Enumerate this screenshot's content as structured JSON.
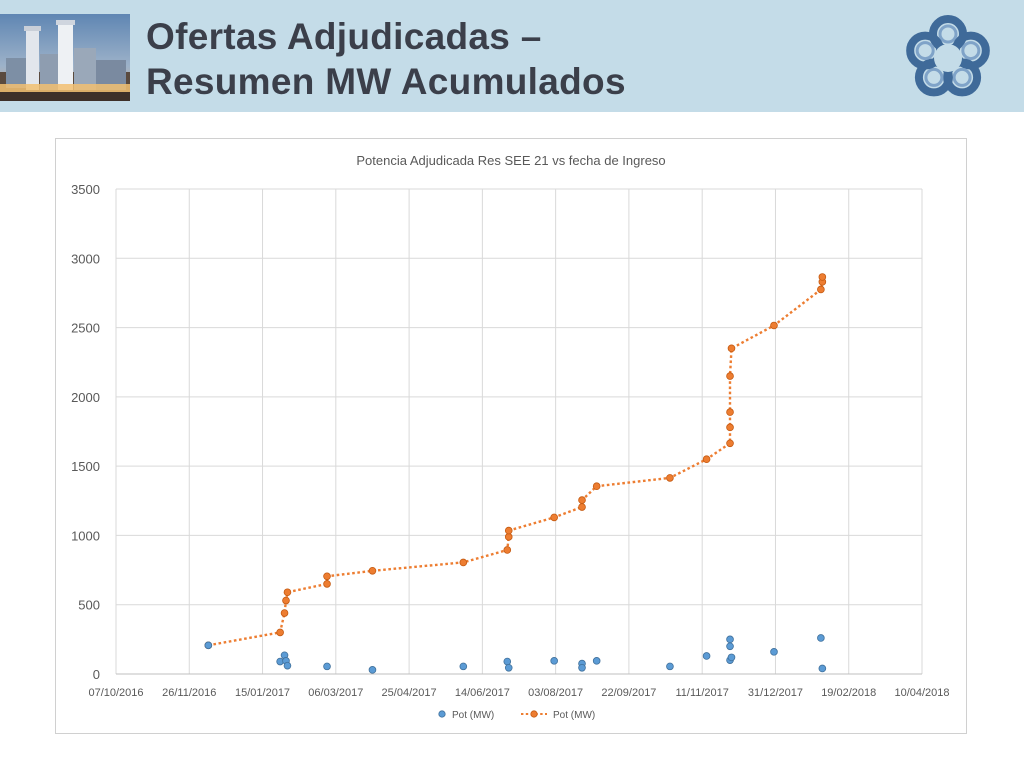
{
  "slide": {
    "title_line1": "Ofertas Adjudicadas –",
    "title_line2": "Resumen MW Acumulados"
  },
  "icons": {
    "header_photo": "power-plant-photo",
    "logo": "flower-logo-icon"
  },
  "colors": {
    "header_bg": "#c4dce8",
    "title_text": "#3b3f4a",
    "scatter_series": "#5b9bd5",
    "line_series": "#ed7d31",
    "logo": "#3f6a99"
  },
  "chart_data": {
    "type": "scatter",
    "title": "Potencia Adjudicada Res SEE 21 vs fecha de Ingreso",
    "xlabel": "",
    "ylabel": "",
    "xlim": [
      "2016-10-07",
      "2018-04-10"
    ],
    "ylim": [
      0,
      3500
    ],
    "x_ticks": [
      "07/10/2016",
      "26/11/2016",
      "15/01/2017",
      "06/03/2017",
      "25/04/2017",
      "14/06/2017",
      "03/08/2017",
      "22/09/2017",
      "11/11/2017",
      "31/12/2017",
      "19/02/2018",
      "10/04/2018"
    ],
    "y_ticks": [
      0,
      500,
      1000,
      1500,
      2000,
      2500,
      3000,
      3500
    ],
    "grid": true,
    "legend_position": "bottom",
    "series": [
      {
        "name": "Pot (MW)",
        "style": "markers",
        "points": [
          {
            "x": "2016-12-09",
            "y": 207
          },
          {
            "x": "2017-01-27",
            "y": 90
          },
          {
            "x": "2017-01-30",
            "y": 135
          },
          {
            "x": "2017-01-31",
            "y": 95
          },
          {
            "x": "2017-02-01",
            "y": 60
          },
          {
            "x": "2017-02-28",
            "y": 55
          },
          {
            "x": "2017-03-31",
            "y": 30
          },
          {
            "x": "2017-06-01",
            "y": 55
          },
          {
            "x": "2017-07-01",
            "y": 90
          },
          {
            "x": "2017-07-02",
            "y": 45
          },
          {
            "x": "2017-08-02",
            "y": 95
          },
          {
            "x": "2017-08-21",
            "y": 75
          },
          {
            "x": "2017-08-21",
            "y": 45
          },
          {
            "x": "2017-08-31",
            "y": 95
          },
          {
            "x": "2017-10-20",
            "y": 55
          },
          {
            "x": "2017-11-14",
            "y": 130
          },
          {
            "x": "2017-11-30",
            "y": 250
          },
          {
            "x": "2017-11-30",
            "y": 200
          },
          {
            "x": "2017-11-30",
            "y": 100
          },
          {
            "x": "2017-12-01",
            "y": 120
          },
          {
            "x": "2017-12-30",
            "y": 160
          },
          {
            "x": "2018-01-31",
            "y": 260
          },
          {
            "x": "2018-02-01",
            "y": 40
          }
        ]
      },
      {
        "name": "Pot (MW)",
        "style": "dotted-line-markers",
        "points": [
          {
            "x": "2016-12-09",
            "y": 207
          },
          {
            "x": "2017-01-27",
            "y": 300
          },
          {
            "x": "2017-01-30",
            "y": 440
          },
          {
            "x": "2017-01-31",
            "y": 530
          },
          {
            "x": "2017-02-01",
            "y": 590
          },
          {
            "x": "2017-02-28",
            "y": 650
          },
          {
            "x": "2017-02-28",
            "y": 705
          },
          {
            "x": "2017-03-31",
            "y": 745
          },
          {
            "x": "2017-06-01",
            "y": 805
          },
          {
            "x": "2017-07-01",
            "y": 895
          },
          {
            "x": "2017-07-02",
            "y": 990
          },
          {
            "x": "2017-07-02",
            "y": 1035
          },
          {
            "x": "2017-08-02",
            "y": 1130
          },
          {
            "x": "2017-08-21",
            "y": 1205
          },
          {
            "x": "2017-08-21",
            "y": 1255
          },
          {
            "x": "2017-08-31",
            "y": 1355
          },
          {
            "x": "2017-10-20",
            "y": 1415
          },
          {
            "x": "2017-11-14",
            "y": 1550
          },
          {
            "x": "2017-11-30",
            "y": 1665
          },
          {
            "x": "2017-11-30",
            "y": 1780
          },
          {
            "x": "2017-11-30",
            "y": 1890
          },
          {
            "x": "2017-11-30",
            "y": 2150
          },
          {
            "x": "2017-12-01",
            "y": 2350
          },
          {
            "x": "2017-12-30",
            "y": 2515
          },
          {
            "x": "2018-01-31",
            "y": 2775
          },
          {
            "x": "2018-02-01",
            "y": 2830
          },
          {
            "x": "2018-02-01",
            "y": 2865
          }
        ]
      }
    ]
  }
}
